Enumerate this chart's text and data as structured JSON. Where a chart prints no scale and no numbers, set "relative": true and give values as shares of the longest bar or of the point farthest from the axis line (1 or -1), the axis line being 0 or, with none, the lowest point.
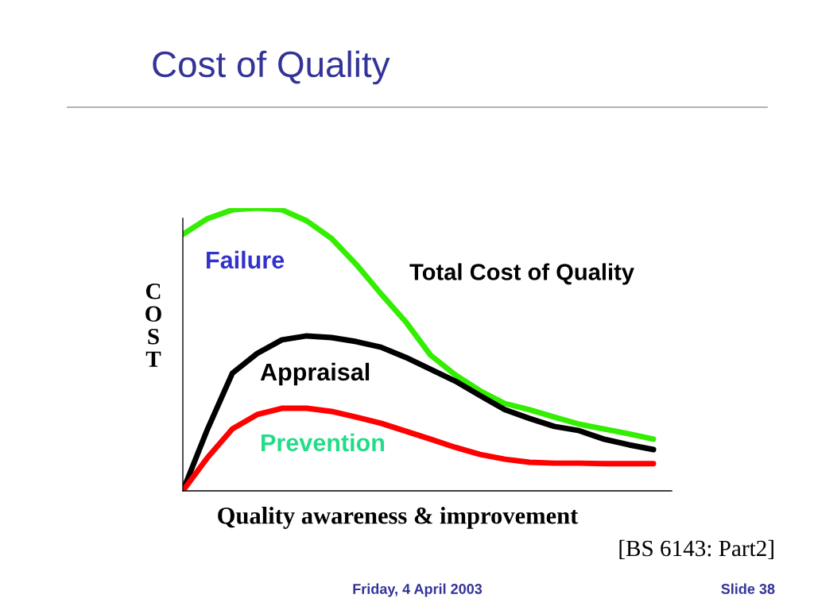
{
  "chart_data": {
    "type": "line",
    "relative": true,
    "title": "Cost of Quality",
    "xlabel": "Quality awareness & improvement",
    "ylabel": "COST",
    "categories": [
      null,
      null,
      null,
      null,
      null,
      null,
      null,
      null,
      null,
      null,
      null,
      null,
      null,
      null,
      null,
      null,
      null,
      null,
      null,
      null
    ],
    "series": [
      {
        "color": "#33ee00",
        "values": [
          0.907,
          0.963,
          0.994,
          1.0,
          0.994,
          0.955,
          0.893,
          0.801,
          0.697,
          0.598,
          0.48,
          0.41,
          0.354,
          0.309,
          0.287,
          0.261,
          0.236,
          0.219,
          0.202,
          0.183
        ]
      },
      {
        "color": "#000000",
        "values": [
          0,
          0.219,
          0.416,
          0.486,
          0.534,
          0.548,
          0.542,
          0.528,
          0.508,
          0.472,
          0.43,
          0.388,
          0.337,
          0.287,
          0.256,
          0.228,
          0.213,
          0.183,
          0.163,
          0.146
        ]
      },
      {
        "color": "#ff0000",
        "values": [
          0,
          0.118,
          0.219,
          0.27,
          0.292,
          0.292,
          0.281,
          0.261,
          0.239,
          0.211,
          0.183,
          0.154,
          0.129,
          0.112,
          0.101,
          0.098,
          0.098,
          0.096,
          0.096,
          0.096
        ]
      }
    ],
    "annotations": [
      "Failure",
      "Total Cost of Quality",
      "Appraisal",
      "Prevention",
      "[BS 6143: Part2]",
      "Friday, 4 April 2003",
      "Slide 38"
    ],
    "grid": false,
    "legend": false,
    "marker": "none",
    "line_style": "solid"
  }
}
